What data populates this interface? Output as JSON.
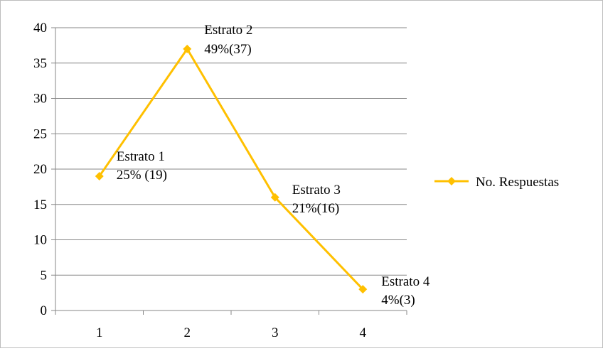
{
  "chart_data": {
    "type": "line",
    "title": "",
    "xlabel": "",
    "ylabel": "",
    "x": [
      1,
      2,
      3,
      4
    ],
    "x_tick_labels": [
      "1",
      "2",
      "3",
      "4"
    ],
    "ylim": [
      0,
      40
    ],
    "y_ticks": [
      0,
      5,
      10,
      15,
      20,
      25,
      30,
      35,
      40
    ],
    "grid": true,
    "legend_position": "right",
    "series": [
      {
        "name": "No. Respuestas",
        "color": "#FFC000",
        "marker": "diamond",
        "values": [
          19,
          37,
          16,
          3
        ]
      }
    ],
    "data_labels": [
      {
        "line1": "Estrato 1",
        "line2": "25% (19)"
      },
      {
        "line1": "Estrato 2",
        "line2": "49%(37)"
      },
      {
        "line1": "Estrato 3",
        "line2": "21%(16)"
      },
      {
        "line1": "Estrato 4",
        "line2": "4%(3)"
      }
    ]
  }
}
